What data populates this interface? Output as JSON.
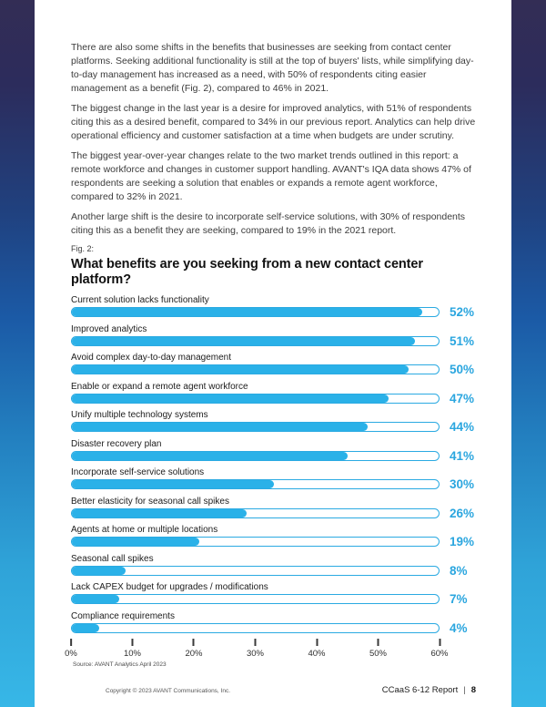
{
  "document": {
    "paragraphs": [
      "There are also some shifts in the benefits that businesses are seeking from contact center platforms. Seeking additional functionality is still at the top of buyers' lists, while simplifying day-to-day management has increased as a need, with 50% of respondents citing easier management as a benefit (Fig. 2), compared to 46% in 2021.",
      "The biggest change in the last year is a desire for improved analytics, with 51% of respondents citing this as a desired benefit, compared to 34% in our previous report. Analytics can help drive operational efficiency and customer satisfaction at a time when budgets are under scrutiny.",
      "The biggest year-over-year changes relate to the two market trends outlined in this report: a remote workforce and changes in customer support handling. AVANT's IQA data shows 47% of respondents are seeking a solution that enables or expands a remote agent workforce, compared to 32% in 2021.",
      "Another large shift is the desire to incorporate self-service solutions, with 30% of respondents citing this as a benefit they are seeking, compared to 19% in the 2021 report."
    ],
    "fig_label": "Fig. 2:",
    "footer": {
      "copyright": "Copyright © 2023 AVANT Communications, Inc.",
      "report_name": "CCaaS 6-12 Report",
      "separator": "|",
      "page_number": "8"
    }
  },
  "chart_data": {
    "type": "bar",
    "orientation": "horizontal",
    "title": "What benefits are you seeking from a new contact center platform?",
    "categories": [
      "Current solution lacks functionality",
      "Improved analytics",
      "Avoid complex day-to-day management",
      "Enable or expand a remote agent workforce",
      "Unify multiple technology systems",
      "Disaster recovery plan",
      "Incorporate self-service solutions",
      "Better elasticity for seasonal call spikes",
      "Agents at home or multiple locations",
      "Seasonal call spikes",
      "Lack CAPEX budget for upgrades / modifications",
      "Compliance requirements"
    ],
    "values": [
      52,
      51,
      50,
      47,
      44,
      41,
      30,
      26,
      19,
      8,
      7,
      4
    ],
    "value_labels": [
      "52%",
      "51%",
      "50%",
      "47%",
      "44%",
      "41%",
      "30%",
      "26%",
      "19%",
      "8%",
      "7%",
      "4%"
    ],
    "axis_ticks": [
      "0%",
      "10%",
      "20%",
      "30%",
      "40%",
      "50%",
      "60%"
    ],
    "xlim": [
      0,
      60
    ],
    "fill_scale_max": 54.5,
    "xlabel": "",
    "ylabel": "",
    "legend": "none",
    "grid": "off",
    "source": "Source: AVANT Analytics April 2023",
    "colors": {
      "bar_fill": "#2ab1e8",
      "bar_outline": "#2baae2",
      "value_label": "#2ba6df",
      "title": "#111111"
    }
  }
}
